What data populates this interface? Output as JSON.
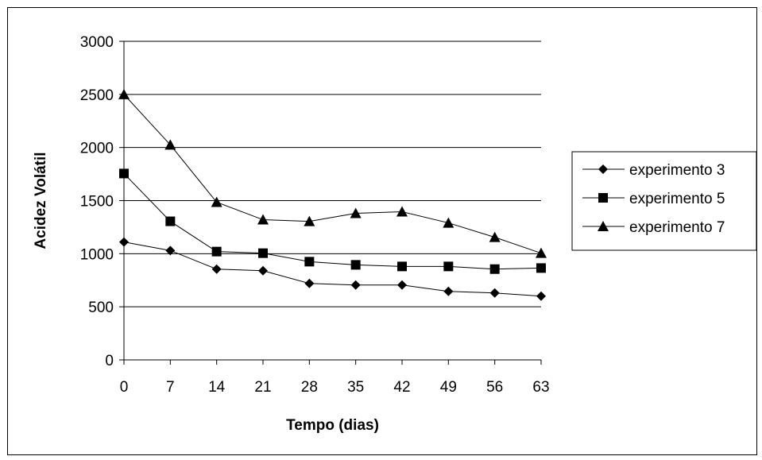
{
  "chart_data": {
    "type": "line",
    "title": "",
    "xlabel": "Tempo (dias)",
    "ylabel": "Acidez Volátil",
    "x": [
      0,
      7,
      14,
      21,
      28,
      35,
      42,
      49,
      56,
      63
    ],
    "ylim": [
      0,
      3000
    ],
    "yticks": [
      0,
      500,
      1000,
      1500,
      2000,
      2500,
      3000
    ],
    "grid": "horizontal",
    "legend_position": "right",
    "series": [
      {
        "name": "experimento 3",
        "marker": "diamond",
        "values": [
          1110,
          1030,
          855,
          840,
          720,
          705,
          705,
          645,
          630,
          600
        ]
      },
      {
        "name": "experimento 5",
        "marker": "square",
        "values": [
          1755,
          1305,
          1020,
          1005,
          925,
          895,
          880,
          880,
          855,
          865
        ]
      },
      {
        "name": "experimento 7",
        "marker": "triangle",
        "values": [
          2500,
          2025,
          1485,
          1320,
          1305,
          1380,
          1395,
          1290,
          1155,
          1005
        ]
      }
    ],
    "colors": {
      "line": "#000000",
      "marker": "#000000",
      "grid": "#000000"
    }
  }
}
